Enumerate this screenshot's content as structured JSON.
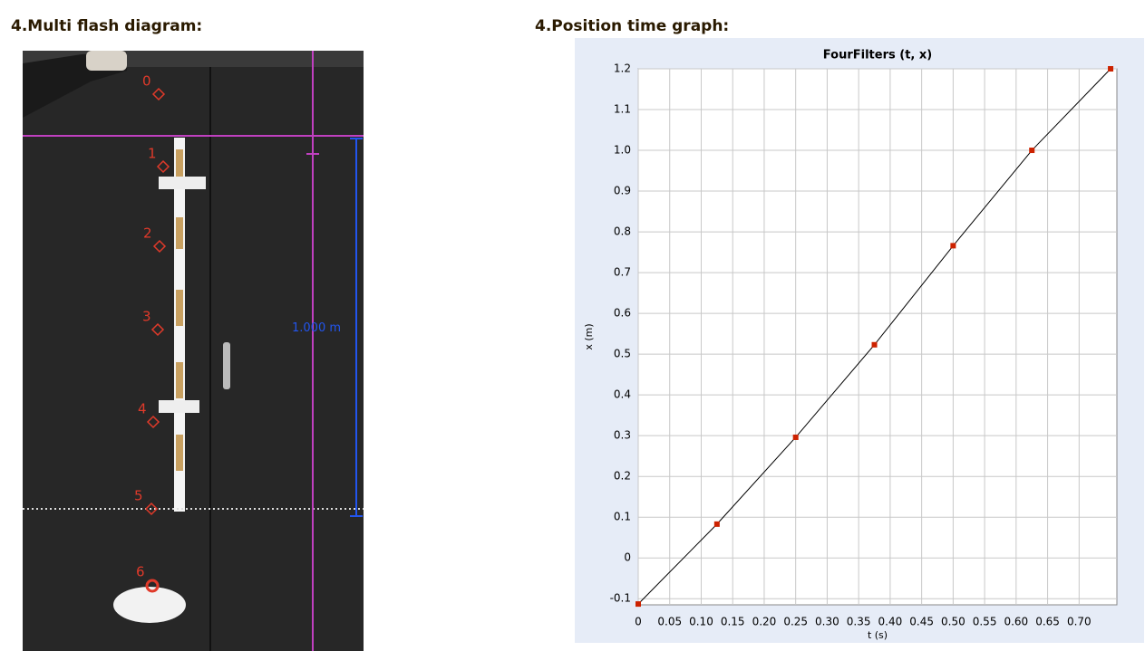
{
  "headings": {
    "left": "4.Multi flash diagram:",
    "right": "4.Position time graph:"
  },
  "photo": {
    "labels": [
      "0",
      "1",
      "2",
      "3",
      "4",
      "5",
      "6"
    ],
    "scale_label": "1.000 m"
  },
  "chart_data": {
    "type": "line",
    "title": "FourFilters (t, x)",
    "x_label": "t (s)",
    "y_label": "x (m)",
    "x": [
      0,
      0.125,
      0.25,
      0.375,
      0.5,
      0.625,
      0.75
    ],
    "values": [
      -0.113,
      0.083,
      0.296,
      0.523,
      0.766,
      1.0,
      1.2
    ],
    "color": "#cc2200",
    "line_color": "#000000",
    "markers": true,
    "grid": true,
    "xlim": [
      0,
      0.76
    ],
    "ylim": [
      -0.115,
      1.2
    ],
    "xticks": [
      0,
      0.05,
      {
        "value": 0.1,
        "label": "0.10"
      },
      0.15,
      {
        "value": 0.2,
        "label": "0.20"
      },
      0.25,
      {
        "value": 0.3,
        "label": "0.30"
      },
      0.35,
      {
        "value": 0.4,
        "label": "0.40"
      },
      0.45,
      {
        "value": 0.5,
        "label": "0.50"
      },
      0.55,
      {
        "value": 0.6,
        "label": "0.60"
      },
      0.65,
      {
        "value": 0.7,
        "label": "0.70"
      }
    ],
    "yticks": [
      -0.1,
      0,
      0.1,
      0.2,
      0.3,
      0.4,
      0.5,
      0.6,
      0.7,
      0.8,
      0.9,
      {
        "value": 1,
        "label": "1.0"
      },
      1.1,
      1.2
    ]
  }
}
